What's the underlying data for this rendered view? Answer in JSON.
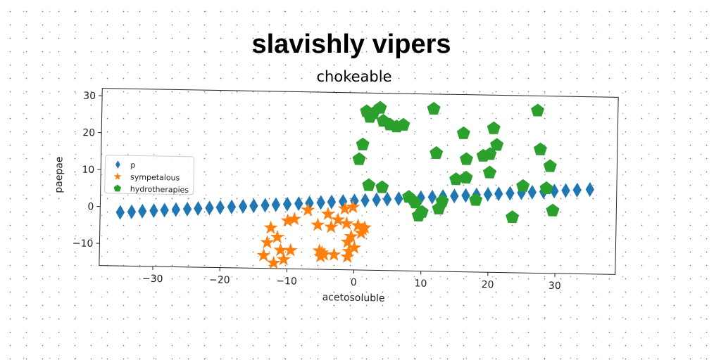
{
  "chart_data": {
    "type": "scatter",
    "title": "slavishly vipers",
    "subtitle": "chokeable",
    "xlabel": "acetosoluble",
    "ylabel": "paepae",
    "xlim": [
      -38,
      39
    ],
    "ylim": [
      -16,
      32
    ],
    "xticks": [
      -30,
      -20,
      -10,
      0,
      10,
      20,
      30
    ],
    "yticks": [
      -10,
      0,
      10,
      20,
      30
    ],
    "xtick_labels": [
      "−30",
      "−20",
      "−10",
      "0",
      "10",
      "20",
      "30"
    ],
    "ytick_labels": [
      "−10",
      "0",
      "10",
      "20",
      "30"
    ],
    "legend_position": "center-left",
    "grid": false,
    "series": [
      {
        "name": "p",
        "marker": "diamond",
        "color": "#1f77b4",
        "x": [
          -35.0,
          -33.3,
          -31.7,
          -30.0,
          -28.4,
          -26.7,
          -25.0,
          -23.4,
          -21.7,
          -20.1,
          -18.4,
          -16.7,
          -15.1,
          -13.4,
          -11.8,
          -10.1,
          -8.4,
          -6.8,
          -5.1,
          -3.5,
          -1.8,
          -0.1,
          1.5,
          3.2,
          4.8,
          6.5,
          8.2,
          9.8,
          11.5,
          13.1,
          14.8,
          16.5,
          18.1,
          19.8,
          21.4,
          23.1,
          24.8,
          26.4,
          28.1,
          29.7,
          31.4,
          33.1,
          35.0
        ],
        "y": [
          -1.5,
          -1.3,
          -1.1,
          -0.9,
          -0.7,
          -0.5,
          -0.3,
          -0.1,
          0.1,
          0.3,
          0.5,
          0.7,
          0.9,
          1.1,
          1.3,
          1.5,
          1.7,
          1.9,
          2.1,
          2.3,
          2.5,
          2.7,
          2.9,
          3.1,
          3.3,
          3.5,
          3.7,
          3.9,
          4.1,
          4.3,
          4.5,
          4.7,
          4.9,
          5.1,
          5.3,
          5.5,
          5.7,
          5.9,
          6.1,
          6.3,
          6.5,
          6.7,
          6.9
        ]
      },
      {
        "name": "sympetalous",
        "marker": "star",
        "color": "#ff7f0e",
        "x": [
          -13.5,
          -13.0,
          -12.5,
          -12.0,
          -11.5,
          -11.0,
          -10.5,
          -10.0,
          -9.5,
          -9.0,
          -7.0,
          -5.5,
          -5.2,
          -5.0,
          -4.8,
          -4.5,
          -4.0,
          -3.5,
          -3.0,
          -2.5,
          -1.5,
          -1.0,
          -1.0,
          -0.8,
          -0.5,
          0.0,
          0.5,
          1.0,
          1.5,
          -1.2,
          -0.3,
          1.2
        ],
        "y": [
          -12.5,
          -9.0,
          -5.0,
          -14.5,
          -7.5,
          -11.0,
          -13.5,
          -3.0,
          -11.0,
          -2.5,
          0.0,
          -4.0,
          -11.0,
          -12.5,
          -11.5,
          -12.0,
          -1.0,
          -4.5,
          -12.0,
          -2.5,
          0.5,
          -12.5,
          -8.5,
          -11.0,
          -7.0,
          -10.0,
          -4.0,
          -6.0,
          -4.5,
          -3.5,
          1.0,
          -5.0
        ]
      },
      {
        "name": "hydrotherapies",
        "marker": "pentagon",
        "color": "#2ca02c",
        "x": [
          1.5,
          2.0,
          2.5,
          3.5,
          4.0,
          5.0,
          6.0,
          7.0,
          1.0,
          0.5,
          2.0,
          4.0,
          8.0,
          9.0,
          11.5,
          12.0,
          16.0,
          16.5,
          19.0,
          20.0,
          20.5,
          21.0,
          23.5,
          25.0,
          27.0,
          27.5,
          28.5,
          29.0,
          29.5,
          9.5,
          10.0,
          12.5,
          13.0,
          15.0,
          18.0,
          16.5,
          20.0
        ],
        "y": [
          27.0,
          25.5,
          26.5,
          28.0,
          24.5,
          23.5,
          23.0,
          23.5,
          18.0,
          14.0,
          7.0,
          6.5,
          4.0,
          2.5,
          28.0,
          16.0,
          21.5,
          9.5,
          15.5,
          11.0,
          23.0,
          18.5,
          -1.0,
          7.5,
          28.0,
          17.5,
          7.0,
          13.0,
          1.0,
          -1.0,
          0.0,
          1.0,
          3.0,
          9.0,
          3.5,
          14.5,
          16.0
        ]
      }
    ]
  }
}
